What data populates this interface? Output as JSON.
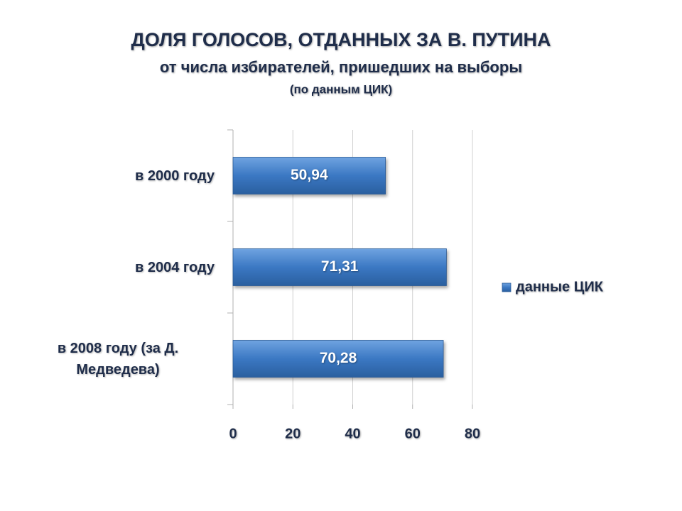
{
  "chart_data": {
    "type": "hbar",
    "title": "ДОЛЯ ГОЛОСОВ, ОТДАННЫХ ЗА В. ПУТИНА",
    "subtitle": "от числа избирателей, пришедших на выборы",
    "note": "(по данным ЦИК)",
    "categories": [
      "в 2000 году",
      "в 2004 году",
      "в 2008 году (за Д. Медведева)"
    ],
    "series": [
      {
        "name": "данные ЦИК",
        "color": "#3b78c3",
        "values": [
          50.94,
          71.31,
          70.28
        ],
        "value_labels": [
          "50,94",
          "71,31",
          "70,28"
        ]
      }
    ],
    "xlim": [
      0,
      80
    ],
    "xticks": [
      0,
      20,
      40,
      60,
      80
    ],
    "grid": true,
    "legend": "right"
  }
}
